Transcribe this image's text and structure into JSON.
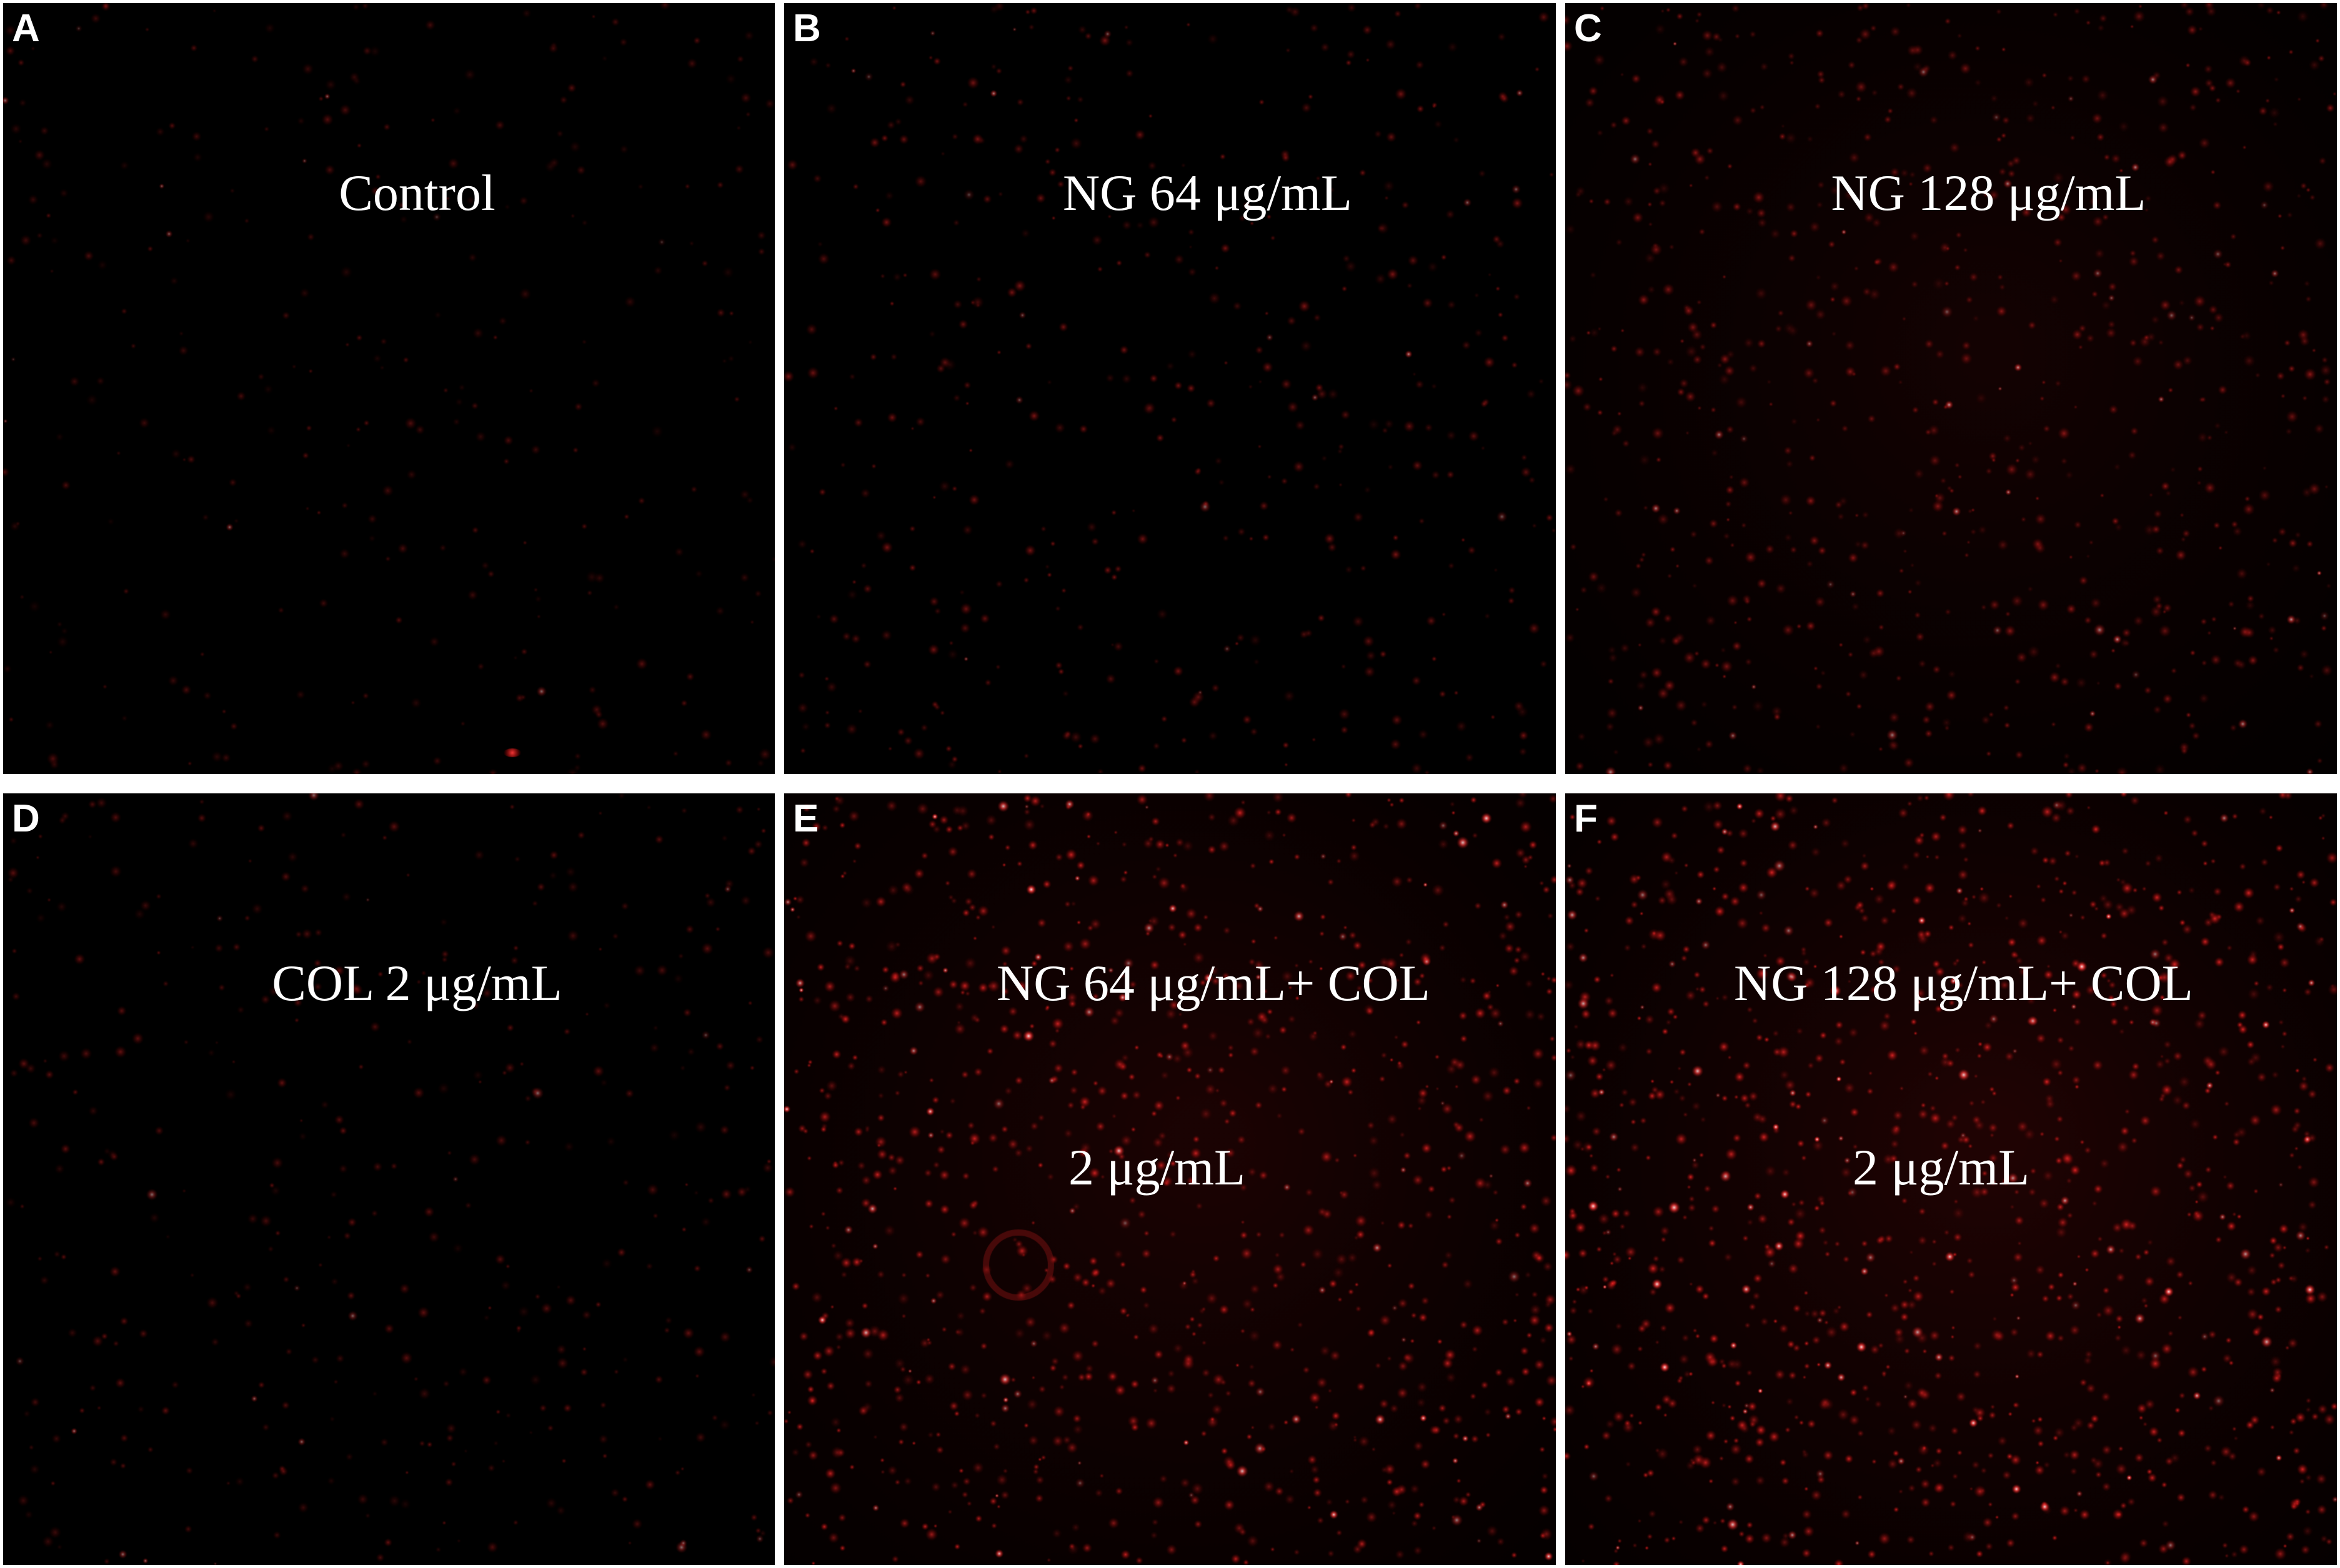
{
  "figure": {
    "panels": [
      {
        "letter": "A",
        "label_lines": [
          "Control"
        ],
        "spot_density": 0.15,
        "spot_brightness": 0.35
      },
      {
        "letter": "B",
        "label_lines": [
          "NG 64 μg/mL"
        ],
        "spot_density": 0.3,
        "spot_brightness": 0.5
      },
      {
        "letter": "C",
        "label_lines": [
          "NG 128 μg/mL"
        ],
        "spot_density": 0.6,
        "spot_brightness": 0.55
      },
      {
        "letter": "D",
        "label_lines": [
          "COL 2 μg/mL"
        ],
        "spot_density": 0.25,
        "spot_brightness": 0.4
      },
      {
        "letter": "E",
        "label_lines": [
          "NG 64 μg/mL+ COL",
          "2 μg/mL"
        ],
        "spot_density": 0.85,
        "spot_brightness": 0.8
      },
      {
        "letter": "F",
        "label_lines": [
          "NG 128 μg/mL+ COL",
          "2 μg/mL"
        ],
        "spot_density": 1.0,
        "spot_brightness": 0.85
      }
    ],
    "colors": {
      "background": "#000000",
      "spot": "#ff2a2a",
      "border": "#ffffff",
      "text": "#ffffff"
    }
  }
}
